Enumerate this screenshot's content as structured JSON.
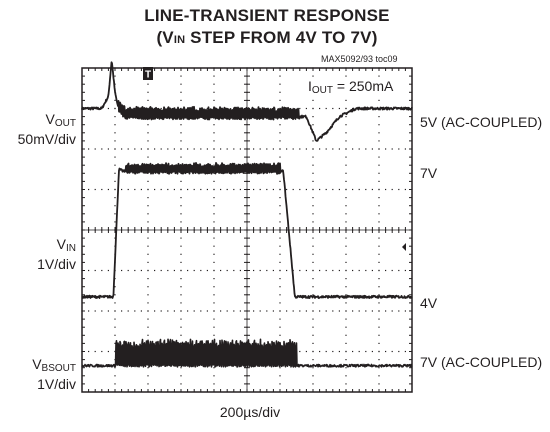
{
  "title_line1": "LINE-TRANSIENT RESPONSE",
  "title_line2_pre": "(V",
  "title_line2_sub": "IN",
  "title_line2_post": " STEP FROM 4V TO 7V)",
  "doc_id": "MAX5092/93 toc09",
  "annotation": {
    "pre": "I",
    "sub": "OUT",
    "post": " = 250mA"
  },
  "time_scale": "200µs/div",
  "trigger_marker": "T",
  "colors": {
    "trace": "#231f20",
    "grid": "#231f20",
    "background": "#ffffff"
  },
  "chart_data": {
    "type": "line",
    "title": "LINE-TRANSIENT RESPONSE (VIN STEP FROM 4V TO 7V)",
    "xlabel": "200µs/div",
    "x_divisions": 10,
    "y_divisions": 8,
    "grid": true,
    "annotation": "IOUT = 250mA",
    "series": [
      {
        "name": "VOUT",
        "label_pre": "V",
        "label_sub": "OUT",
        "scale": "50mV/div",
        "right_label": "5V (AC-COUPLED)",
        "x_div": [
          0,
          0.6,
          0.8,
          0.9,
          1.0,
          1.1,
          1.3,
          2.0,
          4.0,
          6.0,
          6.8,
          7.1,
          7.4,
          7.8,
          8.3,
          10
        ],
        "y_div": [
          7.0,
          7.0,
          7.3,
          8.2,
          7.4,
          7.0,
          6.8,
          6.8,
          6.8,
          6.8,
          6.8,
          6.2,
          6.4,
          6.8,
          7.0,
          7.0
        ],
        "ripple_from_div": 1.1,
        "ripple_to_div": 6.6,
        "ripple_div": 0.22
      },
      {
        "name": "VIN",
        "label_pre": "V",
        "label_sub": "IN",
        "scale": "1V/div",
        "high_label": "7V",
        "low_label": "4V",
        "x_div": [
          0,
          0.95,
          1.12,
          1.25,
          3.0,
          5.0,
          6.1,
          6.45,
          10
        ],
        "y_div": [
          2.35,
          2.35,
          5.5,
          5.45,
          5.45,
          5.45,
          5.45,
          2.35,
          2.35
        ],
        "ripple_from_div": 1.3,
        "ripple_to_div": 6.0,
        "ripple_div": 0.18
      },
      {
        "name": "VBSOUT",
        "label_pre": "V",
        "label_sub": "BSOUT",
        "scale": "1V/div",
        "right_label": "7V (AC-COUPLED)",
        "x_div": [
          0,
          0.95,
          1.1,
          3.0,
          6.0,
          6.4,
          6.8,
          10
        ],
        "y_div": [
          0.65,
          0.65,
          0.65,
          0.65,
          0.65,
          0.65,
          0.65,
          0.65
        ],
        "ripple_from_div": 1.0,
        "ripple_to_div": 6.5,
        "ripple_div": 0.55
      }
    ]
  }
}
